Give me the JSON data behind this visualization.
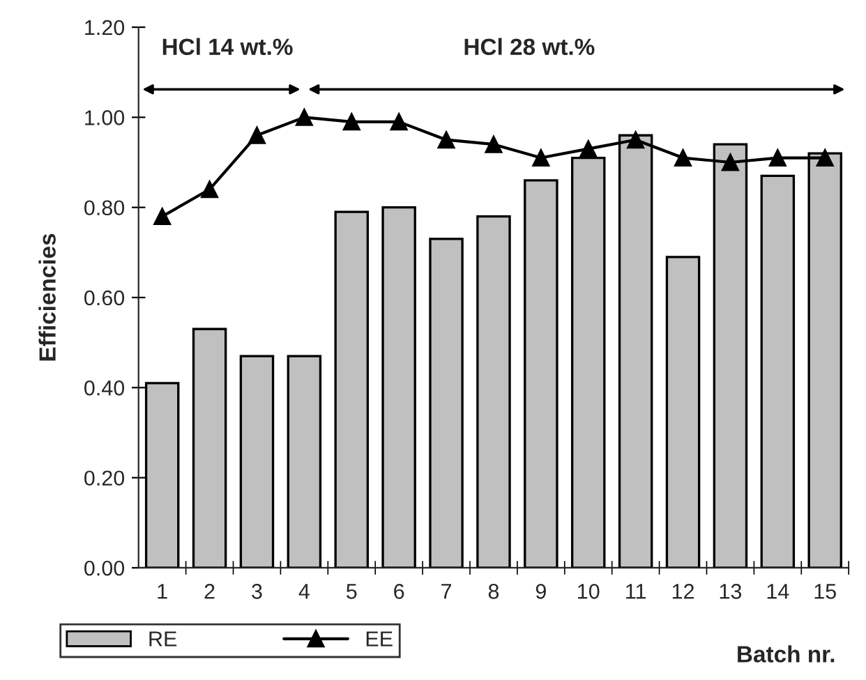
{
  "chart_data": {
    "type": "bar",
    "xlabel": "Batch nr.",
    "ylabel": "Efficiencies",
    "categories": [
      "1",
      "2",
      "3",
      "4",
      "5",
      "6",
      "7",
      "8",
      "9",
      "10",
      "11",
      "12",
      "13",
      "14",
      "15"
    ],
    "series": [
      {
        "name": "RE",
        "color": "#c0c0c0",
        "values": [
          0.41,
          0.53,
          0.47,
          0.47,
          0.79,
          0.8,
          0.73,
          0.78,
          0.86,
          0.91,
          0.96,
          0.69,
          0.94,
          0.87,
          0.92
        ]
      },
      {
        "name": "EE",
        "type": "line",
        "color": "#000000",
        "marker": "triangle",
        "values": [
          0.78,
          0.84,
          0.96,
          1.0,
          0.99,
          0.99,
          0.95,
          0.94,
          0.91,
          0.93,
          0.95,
          0.91,
          0.9,
          0.91,
          0.91
        ]
      }
    ],
    "ylim": [
      0,
      1.2
    ],
    "yticks": [
      {
        "value": 0,
        "label": "0.00"
      },
      {
        "value": 0.2,
        "label": "0.20"
      },
      {
        "value": 0.4,
        "label": "0.40"
      },
      {
        "value": 0.6,
        "label": "0.60"
      },
      {
        "value": 0.8,
        "label": "0.80"
      },
      {
        "value": 1.0,
        "label": "1.00"
      },
      {
        "value": 1.2,
        "label": "1.20"
      }
    ],
    "annotations": [
      "HCl 14 wt.%",
      "HCl 28 wt.%"
    ],
    "legend": "bottom left",
    "grid": false
  }
}
